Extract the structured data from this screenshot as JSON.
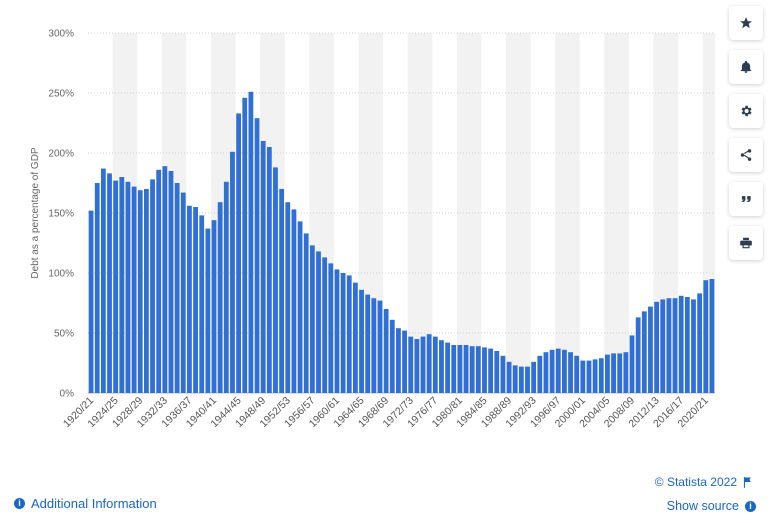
{
  "chart_data": {
    "type": "bar",
    "ylabel": "Debt as a percentage of GDP",
    "xlabel": "",
    "ylim": [
      0,
      300
    ],
    "yticks": [
      0,
      50,
      100,
      150,
      200,
      250,
      300
    ],
    "ytick_labels": [
      "0%",
      "50%",
      "100%",
      "150%",
      "200%",
      "250%",
      "300%"
    ],
    "grid": true,
    "bar_color": "#2f6fd6",
    "categories": [
      "1920/21",
      "1921/22",
      "1922/23",
      "1923/24",
      "1924/25",
      "1925/26",
      "1926/27",
      "1927/28",
      "1928/29",
      "1929/30",
      "1930/31",
      "1931/32",
      "1932/33",
      "1933/34",
      "1934/35",
      "1935/36",
      "1936/37",
      "1937/38",
      "1938/39",
      "1939/40",
      "1940/41",
      "1941/42",
      "1942/43",
      "1943/44",
      "1944/45",
      "1945/46",
      "1946/47",
      "1947/48",
      "1948/49",
      "1949/50",
      "1950/51",
      "1951/52",
      "1952/53",
      "1953/54",
      "1954/55",
      "1955/56",
      "1956/57",
      "1957/58",
      "1958/59",
      "1959/60",
      "1960/61",
      "1961/62",
      "1962/63",
      "1963/64",
      "1964/65",
      "1965/66",
      "1966/67",
      "1967/68",
      "1968/69",
      "1969/70",
      "1970/71",
      "1971/72",
      "1972/73",
      "1973/74",
      "1974/75",
      "1975/76",
      "1976/77",
      "1977/78",
      "1978/79",
      "1979/80",
      "1980/81",
      "1981/82",
      "1982/83",
      "1983/84",
      "1984/85",
      "1985/86",
      "1986/87",
      "1987/88",
      "1988/89",
      "1989/90",
      "1990/91",
      "1991/92",
      "1992/93",
      "1993/94",
      "1994/95",
      "1995/96",
      "1996/97",
      "1997/98",
      "1998/99",
      "1999/00",
      "2000/01",
      "2001/02",
      "2002/03",
      "2003/04",
      "2004/05",
      "2005/06",
      "2006/07",
      "2007/08",
      "2008/09",
      "2009/10",
      "2010/11",
      "2011/12",
      "2012/13",
      "2013/14",
      "2014/15",
      "2015/16",
      "2016/17",
      "2017/18",
      "2018/19",
      "2019/20",
      "2020/21",
      "2021/22"
    ],
    "values": [
      152,
      175,
      187,
      183,
      177,
      180,
      176,
      172,
      169,
      170,
      178,
      186,
      189,
      185,
      175,
      167,
      156,
      155,
      148,
      137,
      144,
      159,
      176,
      201,
      233,
      246,
      251,
      229,
      210,
      205,
      188,
      170,
      159,
      153,
      143,
      133,
      123,
      118,
      113,
      108,
      103,
      100,
      98,
      92,
      86,
      82,
      79,
      77,
      70,
      61,
      54,
      52,
      47,
      45,
      47,
      49,
      47,
      44,
      42,
      40,
      40,
      40,
      39,
      39,
      38,
      37,
      35,
      31,
      26,
      23,
      22,
      22,
      26,
      31,
      34,
      36,
      37,
      36,
      34,
      31,
      27,
      27,
      28,
      29,
      32,
      33,
      33,
      34,
      48,
      63,
      68,
      72,
      76,
      78,
      79,
      79,
      81,
      80,
      78,
      83,
      94,
      95
    ],
    "xtick_labels": [
      "1920/21",
      "1924/25",
      "1928/29",
      "1932/33",
      "1936/37",
      "1940/41",
      "1944/45",
      "1948/49",
      "1952/53",
      "1956/57",
      "1960/61",
      "1964/65",
      "1968/69",
      "1972/73",
      "1976/77",
      "1980/81",
      "1984/85",
      "1988/89",
      "1992/93",
      "1996/97",
      "2000/01",
      "2004/05",
      "2008/09",
      "2012/13",
      "2016/17",
      "2020/21"
    ]
  },
  "sidebar": [
    {
      "name": "favorite-button",
      "icon": "star-icon"
    },
    {
      "name": "notification-button",
      "icon": "bell-icon"
    },
    {
      "name": "settings-button",
      "icon": "gear-icon"
    },
    {
      "name": "share-button",
      "icon": "share-icon"
    },
    {
      "name": "cite-button",
      "icon": "quote-icon"
    },
    {
      "name": "print-button",
      "icon": "print-icon"
    }
  ],
  "footer": {
    "additional_info": "Additional Information",
    "credit": "© Statista 2022",
    "show_source": "Show source"
  },
  "colors": {
    "bar": "#2f6fd6",
    "link": "#1a66c8",
    "band": "#f2f2f2"
  }
}
